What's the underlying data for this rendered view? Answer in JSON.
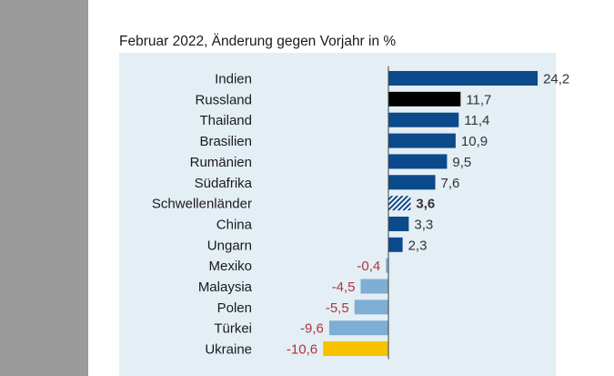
{
  "chart_data": {
    "type": "bar",
    "orientation": "horizontal",
    "title": "Februar 2022, Änderung gegen Vorjahr in %",
    "categories": [
      "Indien",
      "Russland",
      "Thailand",
      "Brasilien",
      "Rumänien",
      "Südafrika",
      "Schwellenländer",
      "China",
      "Ungarn",
      "Mexiko",
      "Malaysia",
      "Polen",
      "Türkei",
      "Ukraine"
    ],
    "values": [
      24.2,
      11.7,
      11.4,
      10.9,
      9.5,
      7.6,
      3.6,
      3.3,
      2.3,
      -0.4,
      -4.5,
      -5.5,
      -9.6,
      -10.6
    ],
    "labels": [
      "24,2",
      "11,7",
      "11,4",
      "10,9",
      "9,5",
      "7,6",
      "3,6",
      "3,3",
      "2,3",
      "-0,4",
      "-4,5",
      "-5,5",
      "-9,6",
      "-10,6"
    ],
    "highlight": {
      "Russland": "#000000",
      "Schwellenländer": "hatched",
      "Ukraine": "#f7c200"
    },
    "grid": false,
    "colors": {
      "positive": "#0b4a8b",
      "negative": "#7eaed4",
      "negative_label": "#b0353a",
      "label": "#333333",
      "panel": "#e4eef5"
    }
  }
}
